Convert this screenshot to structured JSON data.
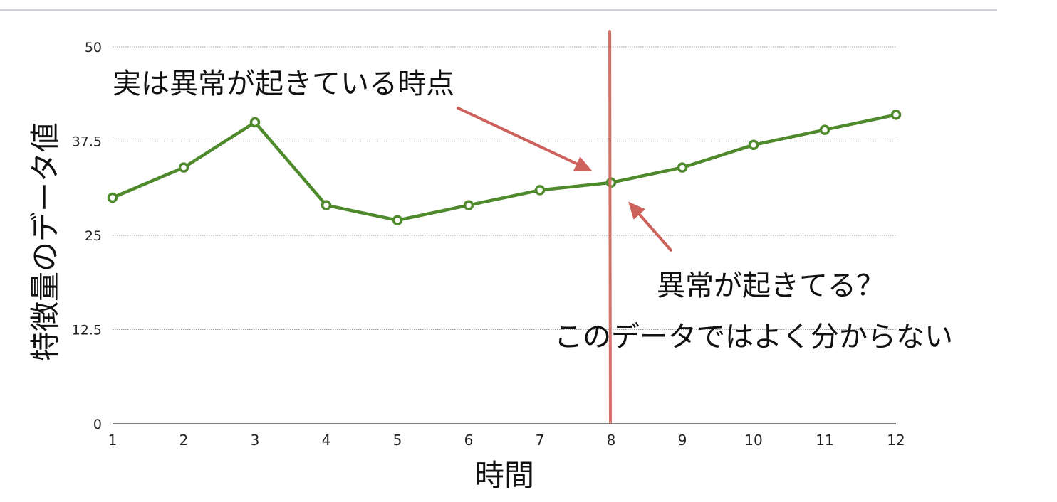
{
  "chart_data": {
    "type": "line",
    "title": "",
    "xlabel": "時間",
    "ylabel": "特徴量のデータ値",
    "x": [
      1,
      2,
      3,
      4,
      5,
      6,
      7,
      8,
      9,
      10,
      11,
      12
    ],
    "series": [
      {
        "values": [
          30,
          34,
          40,
          29,
          27,
          29,
          31,
          32,
          34,
          37,
          39,
          41
        ]
      }
    ],
    "xlim": [
      1,
      12
    ],
    "ylim": [
      0,
      50
    ],
    "yticks": [
      0,
      12.5,
      25,
      37.5,
      50
    ],
    "ytick_labels": [
      "0",
      "12.5",
      "25",
      "37.5",
      "50"
    ],
    "grid": true,
    "marker_x": 8,
    "annotations": [
      {
        "text": "実は異常が起きている時点"
      },
      {
        "text": "異常が起きてる？"
      },
      {
        "text": "このデータではよく分からない"
      }
    ]
  },
  "colors": {
    "line": "#4e8a2c",
    "marker_fill": "#ffffff",
    "vertical_line": "#d36b63",
    "arrow": "#cd625c",
    "grid": "#9a9a9a",
    "axis": "#333333",
    "top_rule": "#b9c0c9",
    "text": "#111111"
  }
}
